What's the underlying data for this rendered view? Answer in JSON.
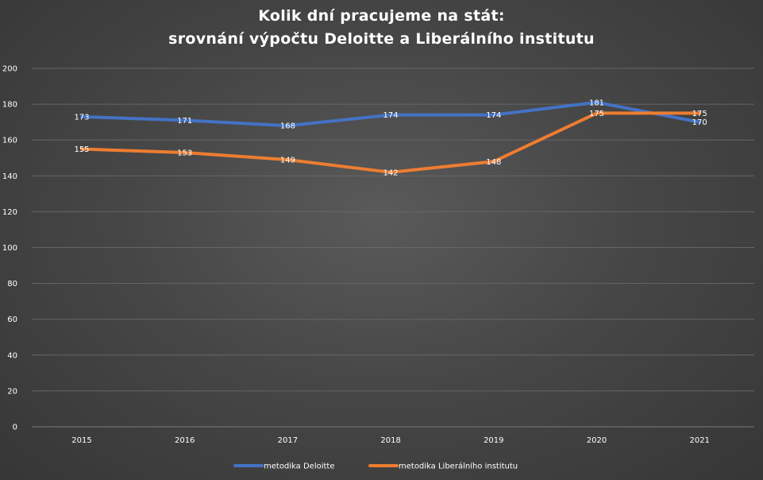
{
  "chart_data": {
    "type": "line",
    "title_line1": "Kolik dní pracujeme na stát:",
    "title_line2": "srovnání výpočtu Deloitte a Liberálního institutu",
    "categories": [
      "2015",
      "2016",
      "2017",
      "2018",
      "2019",
      "2020",
      "2021"
    ],
    "ylim": [
      0,
      200
    ],
    "yticks": [
      0,
      20,
      40,
      60,
      80,
      100,
      120,
      140,
      160,
      180,
      200
    ],
    "grid": true,
    "legend_position": "bottom",
    "series": [
      {
        "name": "metodika Deloitte",
        "color": "#4472c4",
        "values": [
          173,
          171,
          168,
          174,
          174,
          181,
          170
        ]
      },
      {
        "name": "metodika Liberálního institutu",
        "color": "#ed7d31",
        "values": [
          155,
          153,
          149,
          142,
          148,
          175,
          175
        ]
      }
    ]
  }
}
